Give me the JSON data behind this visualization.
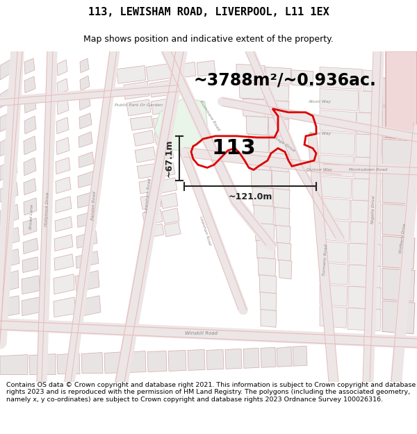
{
  "title": "113, LEWISHAM ROAD, LIVERPOOL, L11 1EX",
  "subtitle": "Map shows position and indicative extent of the property.",
  "area_text": "~3788m²/~0.936ac.",
  "label_113": "113",
  "dim_width": "~121.0m",
  "dim_height": "~67.1m",
  "footer": "Contains OS data © Crown copyright and database right 2021. This information is subject to Crown copyright and database rights 2023 and is reproduced with the permission of HM Land Registry. The polygons (including the associated geometry, namely x, y co-ordinates) are subject to Crown copyright and database rights 2023 Ordnance Survey 100026316.",
  "bg_color": "#ffffff",
  "map_bg": "#f0ecec",
  "property_outline_color": "#dd0000",
  "property_fill": "#ffffff",
  "park_color": "#e8f5e8",
  "park_edge": "#ccddcc",
  "road_light": "#f5eeee",
  "road_mid": "#e8d8d8",
  "road_pink": "#e8bbbb",
  "building_fill": "#e8e4e4",
  "building_edge": "#d4aaaa",
  "building_fill2": "#eeebeb",
  "dim_color": "#222222",
  "area_fontsize": 17,
  "label_fontsize": 22,
  "dim_fontsize": 9,
  "road_label_size": 5,
  "title_fontsize": 11,
  "subtitle_fontsize": 9,
  "footer_fontsize": 6.8
}
